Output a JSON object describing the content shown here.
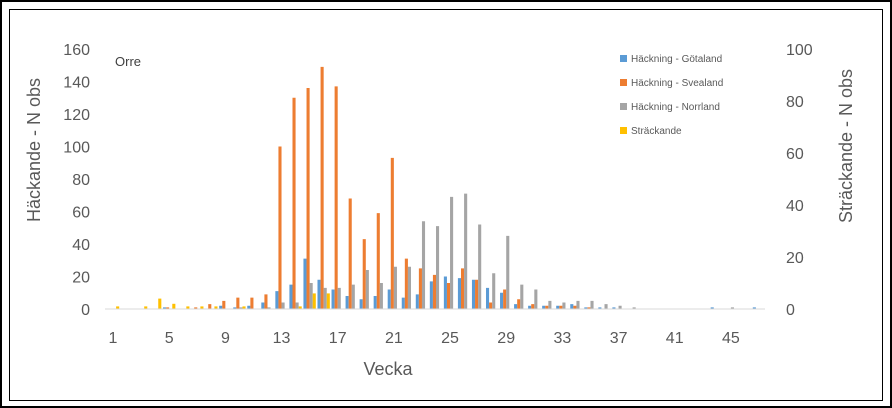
{
  "chart_data": {
    "type": "bar",
    "title": "Orre",
    "xlabel": "Vecka",
    "ylabel_left": "Häckande - N obs",
    "ylabel_right": "Sträckande - N obs",
    "ylim_left": [
      0,
      160
    ],
    "ylim_right": [
      0,
      100
    ],
    "yticks_left": [
      0,
      20,
      40,
      60,
      80,
      100,
      120,
      140,
      160
    ],
    "yticks_right": [
      0,
      20,
      40,
      60,
      80,
      100
    ],
    "x": [
      1,
      2,
      3,
      4,
      5,
      6,
      7,
      8,
      9,
      10,
      11,
      12,
      13,
      14,
      15,
      16,
      17,
      18,
      19,
      20,
      21,
      22,
      23,
      24,
      25,
      26,
      27,
      28,
      29,
      30,
      31,
      32,
      33,
      34,
      35,
      36,
      37,
      38,
      39,
      40,
      41,
      42,
      43,
      44,
      45,
      46,
      47
    ],
    "xtick_labels": [
      "1",
      "5",
      "9",
      "13",
      "17",
      "21",
      "25",
      "29",
      "33",
      "37",
      "41",
      "45"
    ],
    "grid": false,
    "legend_position": "top-right",
    "series": [
      {
        "name": "Häckning - Götaland",
        "color": "#5B9BD5",
        "axis": "left",
        "values": [
          0,
          0,
          0,
          0,
          1,
          0,
          0,
          0,
          2,
          1,
          2,
          4,
          11,
          15,
          31,
          18,
          12,
          8,
          6,
          8,
          12,
          7,
          9,
          17,
          20,
          19,
          18,
          13,
          10,
          3,
          2,
          2,
          2,
          3,
          1,
          1,
          1,
          0,
          0,
          0,
          0,
          0,
          0,
          1,
          0,
          0,
          1
        ]
      },
      {
        "name": "Häckning - Svealand",
        "color": "#ED7D31",
        "axis": "left",
        "values": [
          0,
          0,
          0,
          0,
          1,
          0,
          1,
          3,
          5,
          7,
          7,
          9,
          100,
          130,
          136,
          149,
          137,
          68,
          43,
          59,
          93,
          31,
          25,
          21,
          16,
          25,
          18,
          4,
          12,
          6,
          3,
          2,
          2,
          2,
          1,
          0,
          0,
          0,
          0,
          0,
          0,
          0,
          0,
          0,
          0,
          0,
          0
        ]
      },
      {
        "name": "Häckning - Norrland",
        "color": "#A5A5A5",
        "axis": "left",
        "values": [
          0,
          0,
          0,
          0,
          0,
          0,
          0,
          0,
          0,
          1,
          0,
          1,
          4,
          4,
          16,
          13,
          13,
          15,
          24,
          16,
          26,
          26,
          54,
          51,
          69,
          71,
          52,
          22,
          45,
          15,
          12,
          5,
          4,
          5,
          5,
          3,
          2,
          1,
          0,
          0,
          0,
          0,
          0,
          0,
          1,
          0,
          0
        ]
      },
      {
        "name": "Sträckande",
        "color": "#FFC000",
        "axis": "right",
        "values": [
          1,
          0,
          1,
          4,
          2,
          1,
          1,
          1,
          0,
          1,
          0,
          0,
          0,
          1,
          6,
          6,
          0,
          0,
          0,
          0,
          0,
          0,
          0,
          0,
          0,
          0,
          0,
          0,
          0,
          0,
          0,
          0,
          0,
          0,
          0,
          0,
          0,
          0,
          0,
          0,
          0,
          0,
          0,
          0,
          0,
          0,
          0
        ]
      }
    ]
  }
}
